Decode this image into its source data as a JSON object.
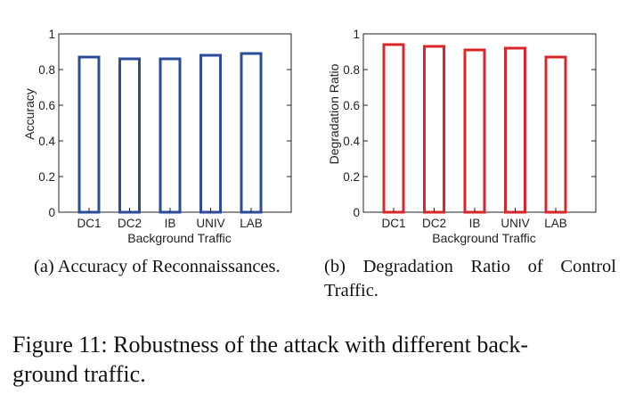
{
  "figure": {
    "caption_line1": "Figure 11:  Robustness of the attack with different back-",
    "caption_line2": "ground traffic."
  },
  "subcaptions": {
    "a": "(a) Accuracy of Reconnaissances.",
    "b": "(b) Degradation Ratio of Control Traffic."
  },
  "chart_data": [
    {
      "type": "bar",
      "title": "",
      "xlabel": "Background Traffic",
      "ylabel": "Accuracy",
      "categories": [
        "DC1",
        "DC2",
        "IB",
        "UNIV",
        "LAB"
      ],
      "values": [
        0.87,
        0.86,
        0.86,
        0.88,
        0.89
      ],
      "ylim": [
        0,
        1
      ],
      "yticks": [
        "0",
        "0.2",
        "0.4",
        "0.6",
        "0.8",
        "1"
      ],
      "bar_color": "#2b4b9b",
      "bar_fill": "none",
      "grid": false,
      "legend": "none"
    },
    {
      "type": "bar",
      "title": "",
      "xlabel": "Background Traffic",
      "ylabel": "Degradation Ratio",
      "categories": [
        "DC1",
        "DC2",
        "IB",
        "UNIV",
        "LAB"
      ],
      "values": [
        0.94,
        0.93,
        0.91,
        0.92,
        0.87
      ],
      "ylim": [
        0,
        1
      ],
      "yticks": [
        "0",
        "0.2",
        "0.4",
        "0.6",
        "0.8",
        "1"
      ],
      "bar_color": "#d9262b",
      "bar_fill": "none",
      "grid": false,
      "legend": "none"
    }
  ]
}
